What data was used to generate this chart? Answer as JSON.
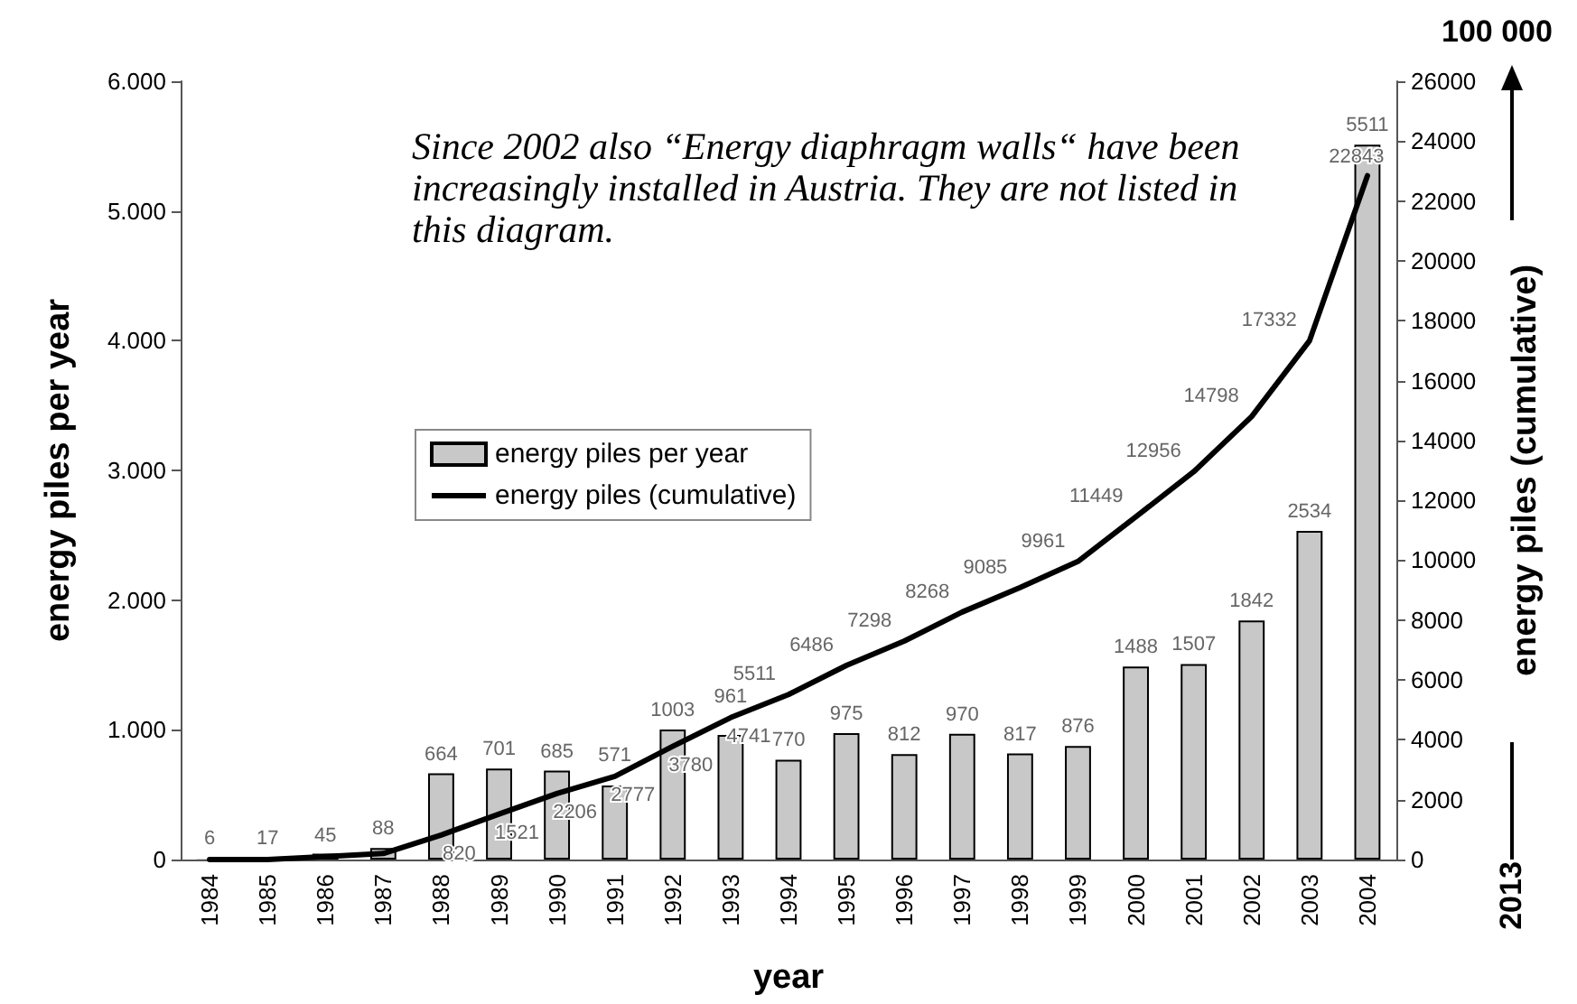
{
  "chart_data": {
    "type": "bar",
    "xlabel": "year",
    "ylabel": "energy piles per year",
    "y2label": "energy piles (cumulative)",
    "annotations": [
      "Since 2002 also “Energy diaphragm walls“ have been increasingly installed in Austria. They are not listed in this diagram.",
      "100 000",
      "2013"
    ],
    "categories": [
      "1984",
      "1985",
      "1986",
      "1987",
      "1988",
      "1989",
      "1990",
      "1991",
      "1992",
      "1993",
      "1994",
      "1995",
      "1996",
      "1997",
      "1998",
      "1999",
      "2000",
      "2001",
      "2002",
      "2003",
      "2004"
    ],
    "series": [
      {
        "name": "energy piles per year",
        "color": "#c8c8c8",
        "values": [
          6,
          17,
          45,
          88,
          664,
          701,
          685,
          571,
          1003,
          961,
          770,
          975,
          812,
          970,
          817,
          876,
          1488,
          1507,
          1842,
          2534,
          5511
        ],
        "value_labels": [
          "6",
          "17",
          "45",
          "88",
          "664",
          "701",
          "685",
          "571",
          "1003",
          "961",
          "770",
          "975",
          "812",
          "970",
          "817",
          "876",
          "1488",
          "1507",
          "1842",
          "2534",
          "5511"
        ]
      },
      {
        "name": "energy piles (cumulative)",
        "type": "line",
        "axis": "y2",
        "color": "#000000",
        "values": [
          0,
          0,
          100,
          200,
          820,
          1521,
          2206,
          2777,
          3780,
          4741,
          5511,
          6486,
          7298,
          8268,
          9085,
          9961,
          11449,
          12956,
          14798,
          17332,
          22843
        ],
        "value_labels": [
          null,
          null,
          null,
          null,
          "820",
          "1521",
          "2206",
          "2777",
          "3780",
          "4741",
          "5511",
          "6486",
          "7298",
          "8268",
          "9085",
          "9961",
          "11449",
          "12956",
          "14798",
          "17332",
          "22843"
        ]
      }
    ],
    "ylim": [
      0,
      6000
    ],
    "yticks": [
      0,
      {
        "value": 1000,
        "label": "1.000"
      },
      {
        "value": 2000,
        "label": "2.000"
      },
      {
        "value": 3000,
        "label": "3.000"
      },
      {
        "value": 4000,
        "label": "4.000"
      },
      {
        "value": 5000,
        "label": "5.000"
      },
      {
        "value": 6000,
        "label": "6.000"
      }
    ],
    "y2lim": [
      0,
      26000
    ],
    "y2ticks": [
      0,
      2000,
      4000,
      6000,
      8000,
      10000,
      12000,
      14000,
      16000,
      18000,
      20000,
      22000,
      24000,
      26000
    ],
    "legend": "center",
    "grid": false,
    "marker": "none",
    "line_style": "solid"
  }
}
